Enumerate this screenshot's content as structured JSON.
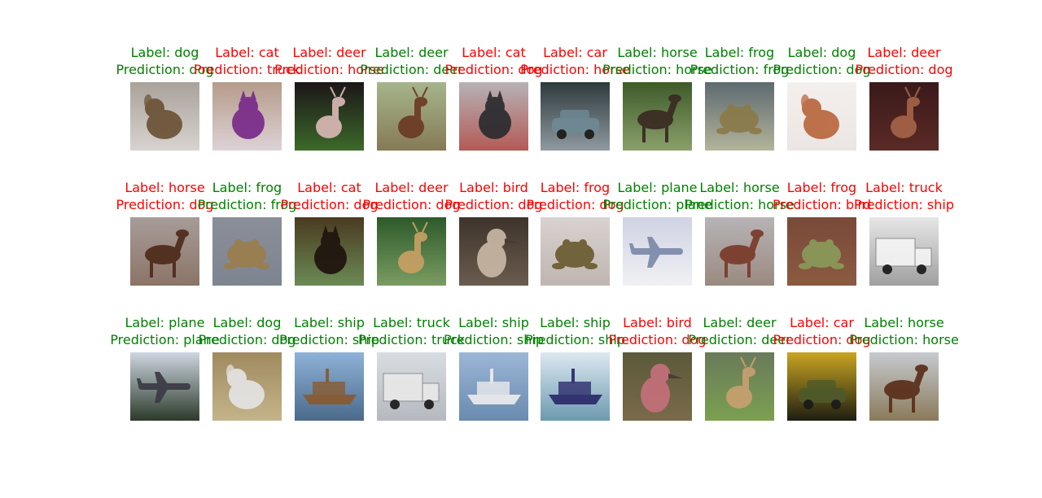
{
  "colors": {
    "correct": "#008000",
    "incorrect": "#ff0000"
  },
  "grid": {
    "rows": 3,
    "cols": 10
  },
  "samples": [
    {
      "label": "Label: dog",
      "prediction": "Prediction: dog",
      "correct": true,
      "subject": "dog",
      "bg": [
        "#a9a29a",
        "#d8d3d0"
      ],
      "fg": "#6b5236"
    },
    {
      "label": "Label: cat",
      "prediction": "Prediction: truck",
      "correct": false,
      "subject": "cat",
      "bg": [
        "#b59b8a",
        "#ddd2d6"
      ],
      "fg": "#7a2a8a"
    },
    {
      "label": "Label: deer",
      "prediction": "Prediction: horse",
      "correct": false,
      "subject": "deer",
      "bg": [
        "#1c1518",
        "#3c6a2a"
      ],
      "fg": "#d9b8b4"
    },
    {
      "label": "Label: deer",
      "prediction": "Prediction: deer",
      "correct": true,
      "subject": "deer",
      "bg": [
        "#a6b58c",
        "#857a55"
      ],
      "fg": "#6b3a24"
    },
    {
      "label": "Label: cat",
      "prediction": "Prediction: dog",
      "correct": false,
      "subject": "cat",
      "bg": [
        "#b7b2b6",
        "#b35a56"
      ],
      "fg": "#2b2b2e"
    },
    {
      "label": "Label: car",
      "prediction": "Prediction: horse",
      "correct": false,
      "subject": "car",
      "bg": [
        "#2e3a3d",
        "#8f9aa0"
      ],
      "fg": "#6e8a94"
    },
    {
      "label": "Label: horse",
      "prediction": "Prediction: horse",
      "correct": true,
      "subject": "horse",
      "bg": [
        "#3e5b2a",
        "#8aa06a"
      ],
      "fg": "#3a2a22"
    },
    {
      "label": "Label: frog",
      "prediction": "Prediction: frog",
      "correct": true,
      "subject": "frog",
      "bg": [
        "#5d6a70",
        "#b3b49a"
      ],
      "fg": "#8b7a4a"
    },
    {
      "label": "Label: dog",
      "prediction": "Prediction: dog",
      "correct": true,
      "subject": "dog",
      "bg": [
        "#f4f0ee",
        "#ebe5e3"
      ],
      "fg": "#b8673e"
    },
    {
      "label": "Label: deer",
      "prediction": "Prediction: dog",
      "correct": false,
      "subject": "deer",
      "bg": [
        "#3a1a1a",
        "#5a2a26"
      ],
      "fg": "#a56248"
    },
    {
      "label": "Label: horse",
      "prediction": "Prediction: dog",
      "correct": false,
      "subject": "horse",
      "bg": [
        "#a79c99",
        "#8b7466"
      ],
      "fg": "#4e2a1a"
    },
    {
      "label": "Label: frog",
      "prediction": "Prediction: frog",
      "correct": true,
      "subject": "frog",
      "bg": [
        "#8a8e98",
        "#7e8590"
      ],
      "fg": "#9a7e4c"
    },
    {
      "label": "Label: cat",
      "prediction": "Prediction: dog",
      "correct": false,
      "subject": "cat",
      "bg": [
        "#4a3a20",
        "#6b8a55"
      ],
      "fg": "#1e140e"
    },
    {
      "label": "Label: deer",
      "prediction": "Prediction: dog",
      "correct": false,
      "subject": "deer",
      "bg": [
        "#2d5a2a",
        "#7a9c62"
      ],
      "fg": "#c8a064"
    },
    {
      "label": "Label: bird",
      "prediction": "Prediction: dog",
      "correct": false,
      "subject": "bird",
      "bg": [
        "#3e342c",
        "#6a5c4e"
      ],
      "fg": "#c9b7a5"
    },
    {
      "label": "Label: frog",
      "prediction": "Prediction: dog",
      "correct": false,
      "subject": "frog",
      "bg": [
        "#d8d2d0",
        "#bfb5b0"
      ],
      "fg": "#6a5c30"
    },
    {
      "label": "Label: plane",
      "prediction": "Prediction: plane",
      "correct": true,
      "subject": "plane",
      "bg": [
        "#cfd3e3",
        "#f0f0f4"
      ],
      "fg": "#7c8aa8"
    },
    {
      "label": "Label: horse",
      "prediction": "Prediction: horse",
      "correct": true,
      "subject": "horse",
      "bg": [
        "#b7b3b6",
        "#9a8a80"
      ],
      "fg": "#7a3a2a"
    },
    {
      "label": "Label: frog",
      "prediction": "Prediction: bird",
      "correct": false,
      "subject": "frog",
      "bg": [
        "#7a4a3a",
        "#8a5a40"
      ],
      "fg": "#8a9a5a"
    },
    {
      "label": "Label: truck",
      "prediction": "Prediction: ship",
      "correct": false,
      "subject": "truck",
      "bg": [
        "#e6e6e6",
        "#a0a0a0"
      ],
      "fg": "#f4f4f4"
    },
    {
      "label": "Label: plane",
      "prediction": "Prediction: plane",
      "correct": true,
      "subject": "plane",
      "bg": [
        "#cdd6e0",
        "#2c3a2a"
      ],
      "fg": "#3a3a44"
    },
    {
      "label": "Label: dog",
      "prediction": "Prediction: dog",
      "correct": true,
      "subject": "dog",
      "bg": [
        "#a08a60",
        "#c4b48a"
      ],
      "fg": "#e4e4e4"
    },
    {
      "label": "Label: ship",
      "prediction": "Prediction: ship",
      "correct": true,
      "subject": "ship",
      "bg": [
        "#8fb2d8",
        "#4a6a8a"
      ],
      "fg": "#8a5a2e"
    },
    {
      "label": "Label: truck",
      "prediction": "Prediction: truck",
      "correct": true,
      "subject": "truck",
      "bg": [
        "#d8dde2",
        "#b5b9bf"
      ],
      "fg": "#e8e8e8"
    },
    {
      "label": "Label: ship",
      "prediction": "Prediction: ship",
      "correct": true,
      "subject": "ship",
      "bg": [
        "#9cb6d6",
        "#6a8ab0"
      ],
      "fg": "#ececec"
    },
    {
      "label": "Label: ship",
      "prediction": "Prediction: ship",
      "correct": true,
      "subject": "ship",
      "bg": [
        "#dde8f0",
        "#6c9ab0"
      ],
      "fg": "#2a2a6a"
    },
    {
      "label": "Label: bird",
      "prediction": "Prediction: dog",
      "correct": false,
      "subject": "bird",
      "bg": [
        "#5a5a3a",
        "#7a6a4a"
      ],
      "fg": "#c4707a"
    },
    {
      "label": "Label: deer",
      "prediction": "Prediction: deer",
      "correct": true,
      "subject": "deer",
      "bg": [
        "#6a7a5a",
        "#7aa050"
      ],
      "fg": "#c8a070"
    },
    {
      "label": "Label: car",
      "prediction": "Prediction: dog",
      "correct": false,
      "subject": "car",
      "bg": [
        "#c9a522",
        "#1e1e12"
      ],
      "fg": "#4e5a2a"
    },
    {
      "label": "Label: horse",
      "prediction": "Prediction: horse",
      "correct": true,
      "subject": "horse",
      "bg": [
        "#c6cad0",
        "#8a7a5a"
      ],
      "fg": "#5a2e1a"
    }
  ]
}
